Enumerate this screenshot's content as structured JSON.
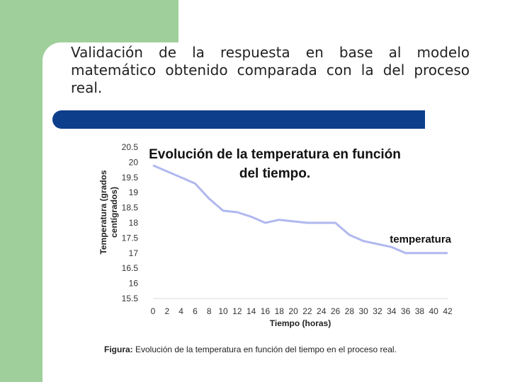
{
  "slide": {
    "title": "Validación de la respuesta en base al modelo matemático obtenido comparada con la del proceso real.",
    "caption_prefix": "Figura:",
    "caption_text": " Evolución de la temperatura en función del tiempo en el proceso real."
  },
  "colors": {
    "background_green": "#9fcf9a",
    "title_bar_blue": "#0d3e8c",
    "series_line": "#b0b8ef"
  },
  "chart_data": {
    "type": "line",
    "title_lines": [
      "Evolución de la temperatura en función",
      "del tiempo."
    ],
    "xlabel": "Tiempo (horas)",
    "ylabel_lines": [
      "Temperatura (grados",
      "centígrados)"
    ],
    "xlim": [
      0,
      42
    ],
    "ylim": [
      15.5,
      20.5
    ],
    "x_ticks": [
      0,
      2,
      4,
      6,
      8,
      10,
      12,
      14,
      16,
      18,
      20,
      22,
      24,
      26,
      28,
      30,
      32,
      34,
      36,
      38,
      40,
      42
    ],
    "y_ticks": [
      "20.5",
      "20",
      "19.5",
      "19",
      "18.5",
      "18",
      "17.5",
      "17",
      "16.5",
      "16",
      "15.5"
    ],
    "legend": "right",
    "grid": false,
    "series": [
      {
        "name": "temperatura",
        "x": [
          0,
          2,
          4,
          6,
          8,
          10,
          12,
          14,
          16,
          18,
          20,
          22,
          24,
          26,
          28,
          30,
          32,
          34,
          36,
          38,
          40,
          42
        ],
        "y": [
          19.9,
          19.7,
          19.5,
          19.3,
          18.8,
          18.4,
          18.35,
          18.2,
          18.0,
          18.1,
          18.05,
          18.0,
          18.0,
          18.0,
          17.6,
          17.4,
          17.3,
          17.2,
          17.0,
          17.0,
          17.0,
          17.0
        ]
      }
    ]
  }
}
